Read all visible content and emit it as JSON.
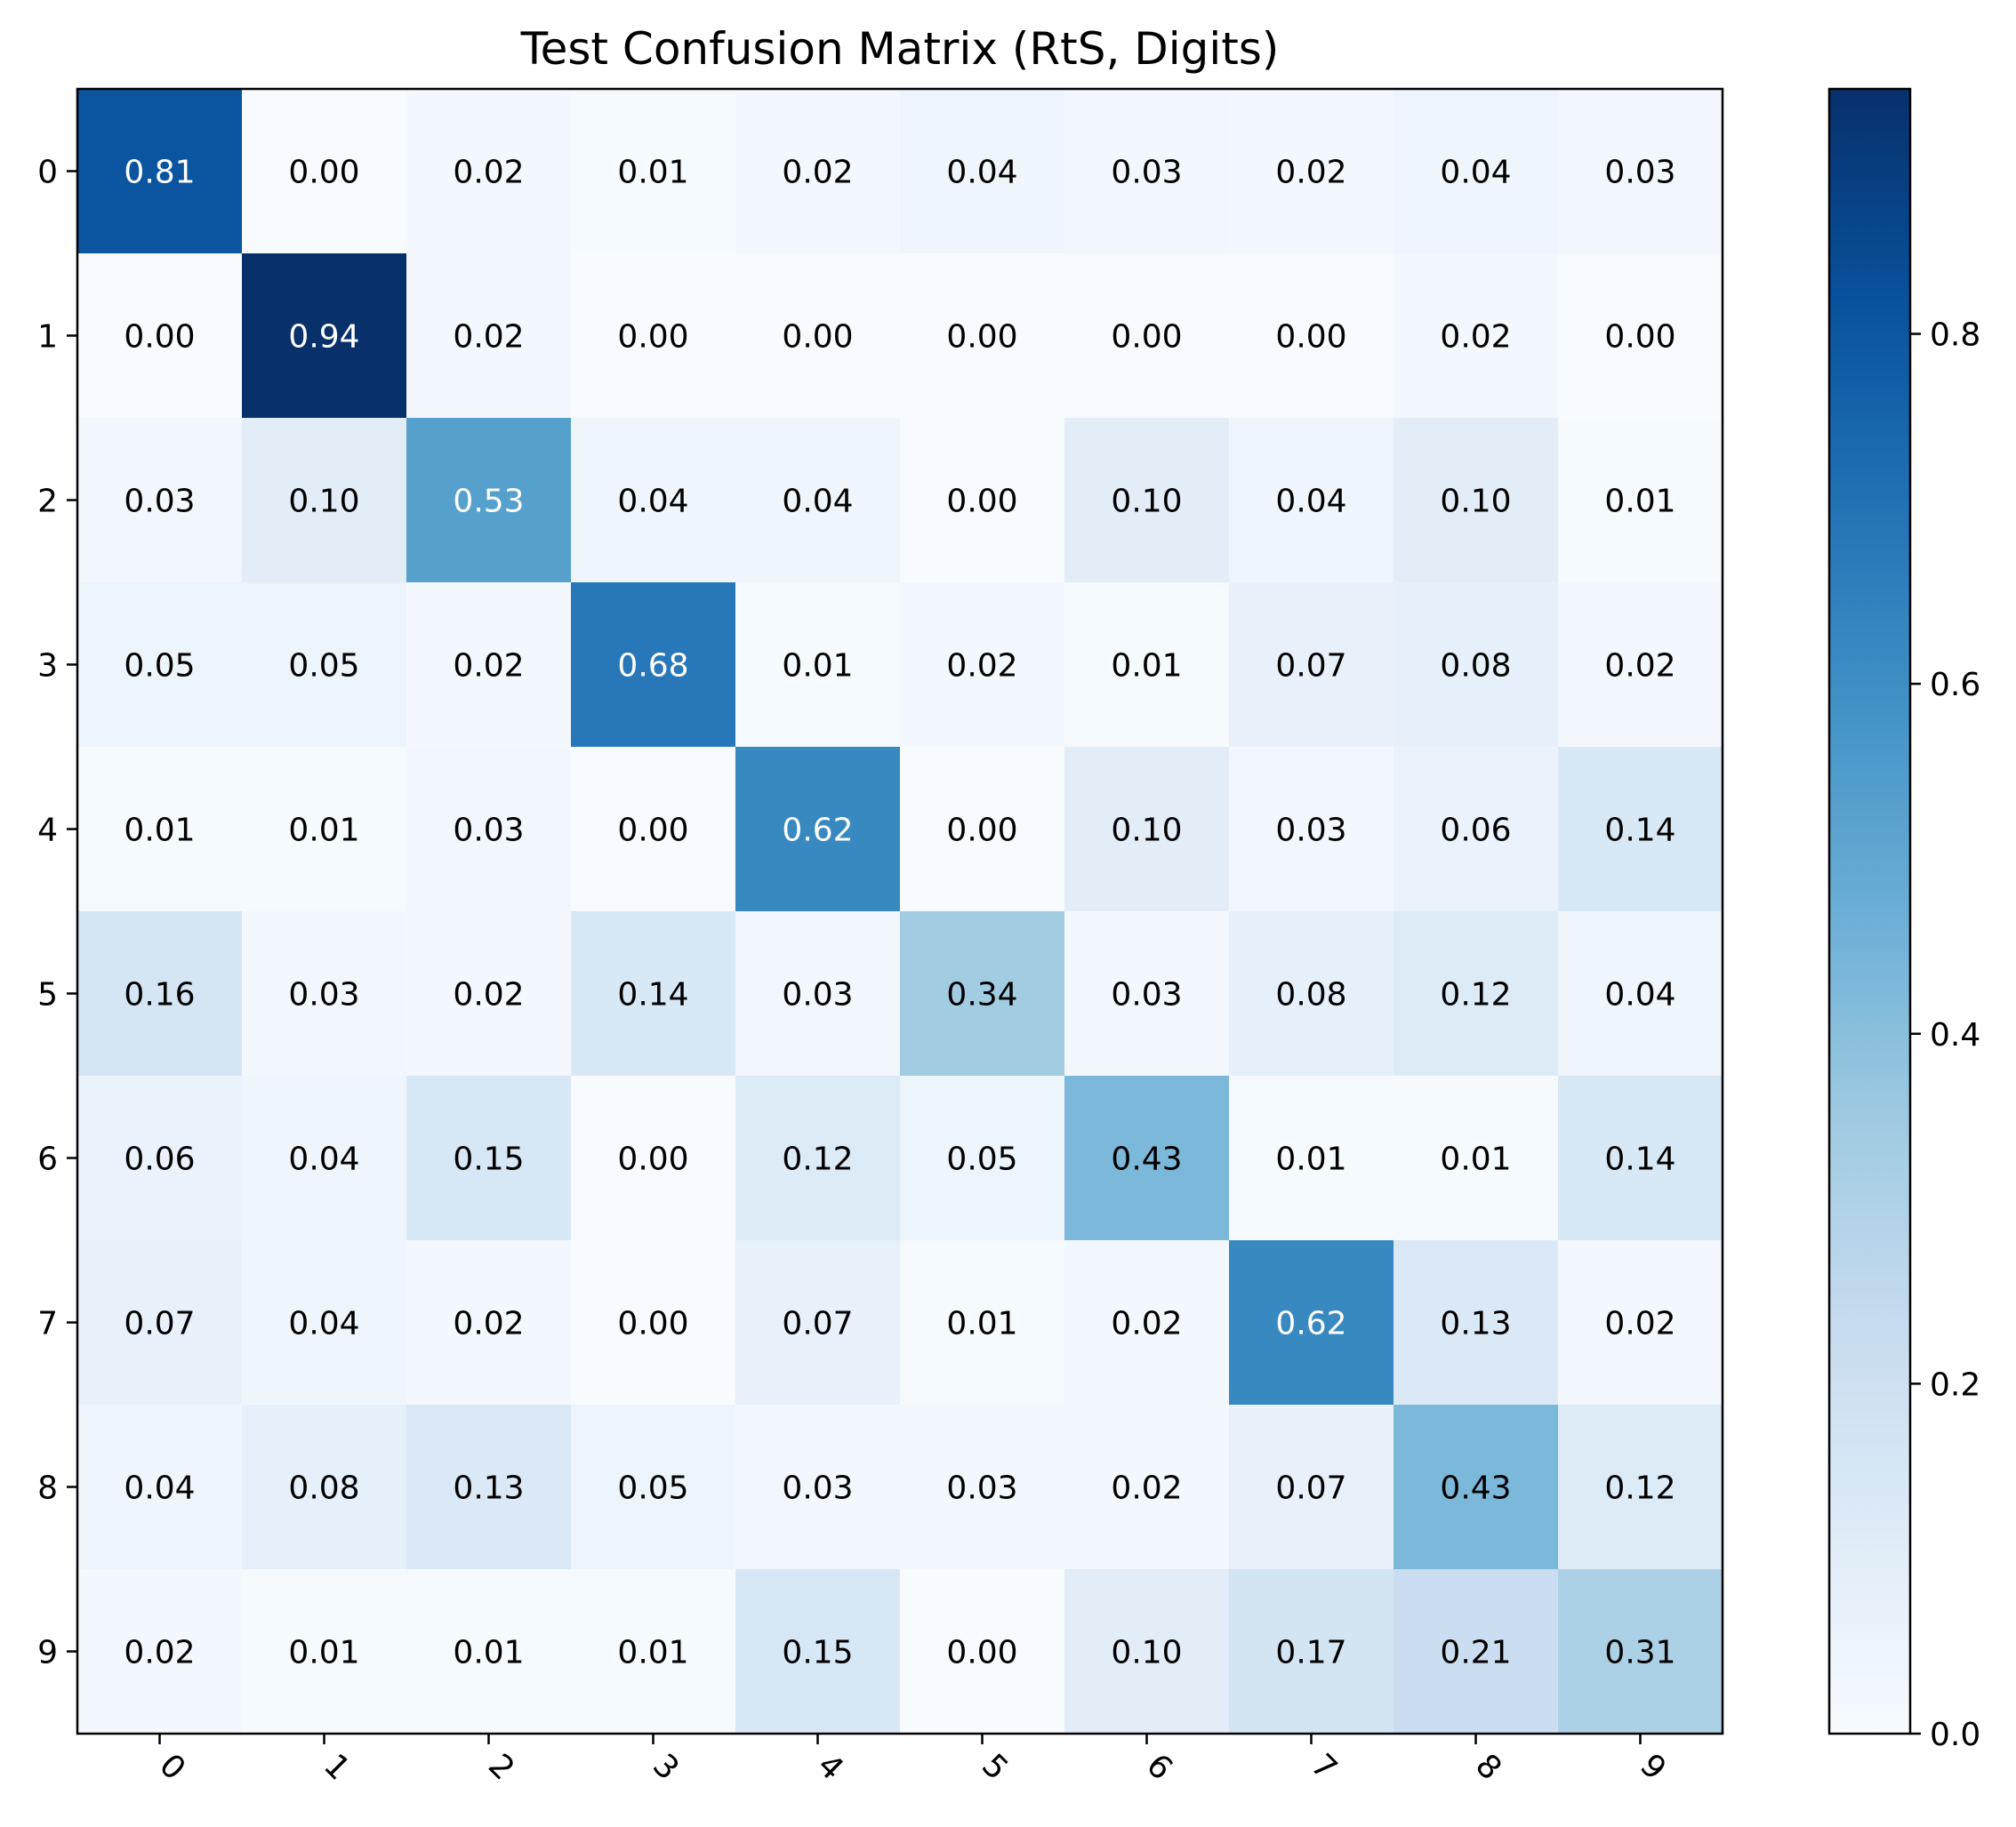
{
  "chart_data": {
    "type": "heatmap",
    "title": "Test Confusion Matrix (RtS, Digits)",
    "xlabel": "",
    "ylabel": "",
    "x_categories": [
      "0",
      "1",
      "2",
      "3",
      "4",
      "5",
      "6",
      "7",
      "8",
      "9"
    ],
    "y_categories": [
      "0",
      "1",
      "2",
      "3",
      "4",
      "5",
      "6",
      "7",
      "8",
      "9"
    ],
    "values": [
      [
        0.81,
        0.0,
        0.02,
        0.01,
        0.02,
        0.04,
        0.03,
        0.02,
        0.04,
        0.03
      ],
      [
        0.0,
        0.94,
        0.02,
        0.0,
        0.0,
        0.0,
        0.0,
        0.0,
        0.02,
        0.0
      ],
      [
        0.03,
        0.1,
        0.53,
        0.04,
        0.04,
        0.0,
        0.1,
        0.04,
        0.1,
        0.01
      ],
      [
        0.05,
        0.05,
        0.02,
        0.68,
        0.01,
        0.02,
        0.01,
        0.07,
        0.08,
        0.02
      ],
      [
        0.01,
        0.01,
        0.03,
        0.0,
        0.62,
        0.0,
        0.1,
        0.03,
        0.06,
        0.14
      ],
      [
        0.16,
        0.03,
        0.02,
        0.14,
        0.03,
        0.34,
        0.03,
        0.08,
        0.12,
        0.04
      ],
      [
        0.06,
        0.04,
        0.15,
        0.0,
        0.12,
        0.05,
        0.43,
        0.01,
        0.01,
        0.14
      ],
      [
        0.07,
        0.04,
        0.02,
        0.0,
        0.07,
        0.01,
        0.02,
        0.62,
        0.13,
        0.02
      ],
      [
        0.04,
        0.08,
        0.13,
        0.05,
        0.03,
        0.03,
        0.02,
        0.07,
        0.43,
        0.12
      ],
      [
        0.02,
        0.01,
        0.01,
        0.01,
        0.15,
        0.0,
        0.1,
        0.17,
        0.21,
        0.31
      ]
    ],
    "value_format": "2 decimals",
    "colormap": "Blues",
    "colorbar": {
      "range": [
        0.0,
        0.94
      ],
      "ticks": [
        0.0,
        0.2,
        0.4,
        0.6,
        0.8
      ],
      "tick_labels": [
        "0.0",
        "0.2",
        "0.4",
        "0.6",
        "0.8"
      ]
    },
    "x_tick_rotation_deg": 45,
    "grid": false
  }
}
